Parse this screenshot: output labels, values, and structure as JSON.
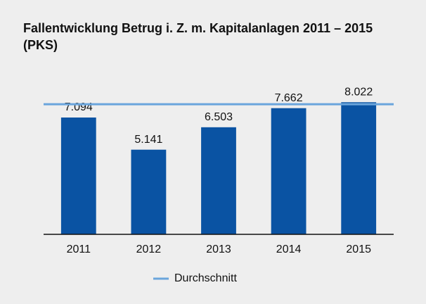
{
  "chart_data": {
    "type": "bar",
    "title": "Fallentwicklung Betrug i. Z. m. Kapitalanlagen 2011 – 2015 (PKS)",
    "categories": [
      "2011",
      "2012",
      "2013",
      "2014",
      "2015"
    ],
    "values": [
      7094,
      5141,
      6503,
      7662,
      8022
    ],
    "value_labels": [
      "7.094",
      "5.141",
      "6.503",
      "7.662",
      "8.022"
    ],
    "color": "#0a53a3",
    "reference_line": {
      "name": "Durchschnitt",
      "value": 7900,
      "color": "#6aa5dc"
    },
    "ylim": [
      0,
      10000
    ]
  }
}
